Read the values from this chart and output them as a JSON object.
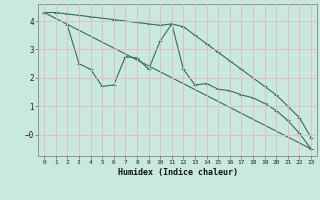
{
  "title": "",
  "xlabel": "Humidex (Indice chaleur)",
  "bg_color": "#c8e8e0",
  "grid_color": "#e8b8b8",
  "line_color": "#2a7060",
  "xlim": [
    -0.5,
    23.5
  ],
  "ylim": [
    -0.75,
    4.6
  ],
  "xticks": [
    0,
    1,
    2,
    3,
    4,
    5,
    6,
    7,
    8,
    9,
    10,
    11,
    12,
    13,
    14,
    15,
    16,
    17,
    18,
    19,
    20,
    21,
    22,
    23
  ],
  "yticks": [
    0,
    1,
    2,
    3,
    4
  ],
  "series1_x": [
    0,
    1,
    2,
    3,
    4,
    5,
    6,
    7,
    8,
    9,
    10,
    11,
    12,
    13,
    14,
    15,
    16,
    17,
    18,
    19,
    20,
    21,
    22,
    23
  ],
  "series1_y": [
    4.3,
    4.3,
    4.25,
    4.2,
    4.15,
    4.1,
    4.05,
    4.0,
    3.95,
    3.9,
    3.85,
    3.9,
    3.8,
    3.5,
    3.2,
    2.9,
    2.6,
    2.3,
    2.0,
    1.7,
    1.4,
    1.0,
    0.6,
    -0.1
  ],
  "series2_x": [
    2,
    3,
    4,
    5,
    6,
    7,
    8,
    9,
    10,
    11,
    12,
    13,
    14,
    15,
    16,
    17,
    18,
    19,
    20,
    21,
    22,
    23
  ],
  "series2_y": [
    3.85,
    2.5,
    2.3,
    1.7,
    1.75,
    2.75,
    2.7,
    2.3,
    3.3,
    3.9,
    2.3,
    1.75,
    1.8,
    1.6,
    1.55,
    1.4,
    1.3,
    1.1,
    0.85,
    0.5,
    0.05,
    -0.5
  ],
  "series3_x": [
    0,
    23
  ],
  "series3_y": [
    4.3,
    -0.5
  ]
}
